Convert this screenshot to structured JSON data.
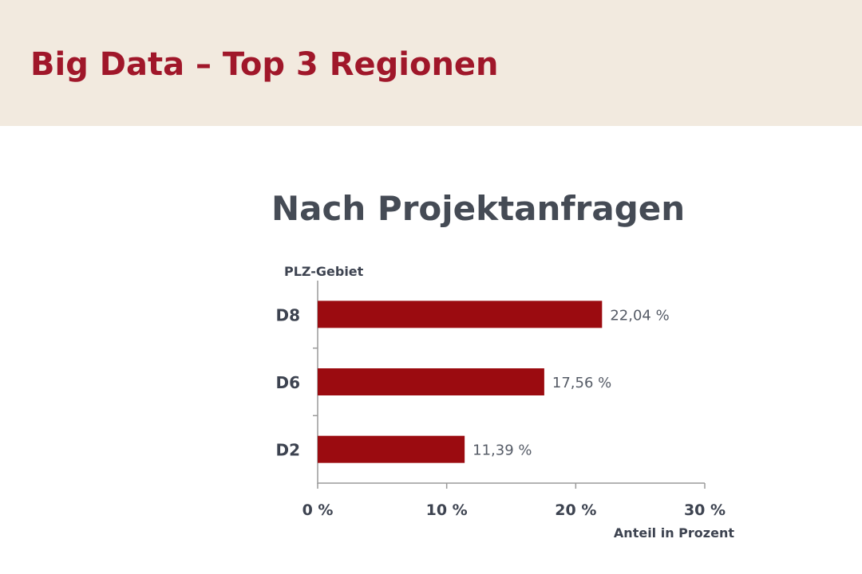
{
  "slide": {
    "title": "Big Data – Top 3 Regionen"
  },
  "colors": {
    "header_bg": "#f2eadf",
    "title_red": "#a0172a",
    "bar_red": "#9b0b10",
    "chart_title_gray": "#454b55",
    "axis_gray": "#9a9a9a",
    "label_dark": "#3d4350",
    "value_gray": "#555b66"
  },
  "chart_data": {
    "type": "bar",
    "orientation": "horizontal",
    "title": "Nach Projektanfragen",
    "ylabel": "PLZ-Gebiet",
    "xlabel": "Anteil in Prozent",
    "categories": [
      "D8",
      "D6",
      "D2"
    ],
    "values": [
      22.04,
      17.56,
      11.39
    ],
    "value_labels": [
      "22,04 %",
      "17,56 %",
      "11,39 %"
    ],
    "xlim": [
      0,
      30
    ],
    "xticks": [
      0,
      10,
      20,
      30
    ],
    "xtick_labels": [
      "0 %",
      "10 %",
      "20 %",
      "30 %"
    ],
    "grid": false,
    "legend": "none"
  }
}
